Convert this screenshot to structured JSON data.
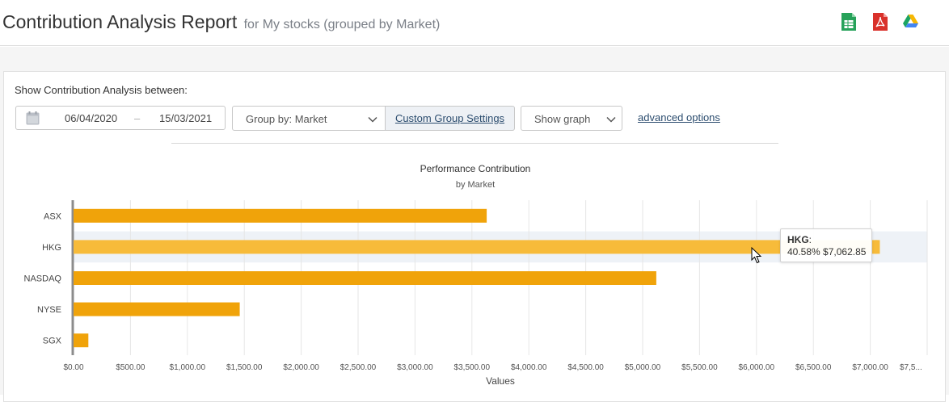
{
  "header": {
    "title": "Contribution Analysis Report",
    "subtitle": "for My stocks (grouped by Market)",
    "icons": [
      "spreadsheet-icon",
      "pdf-icon",
      "google-drive-icon"
    ]
  },
  "controls": {
    "show_label": "Show Contribution Analysis between:",
    "date_from": "06/04/2020",
    "date_dash": "–",
    "date_to": "15/03/2021",
    "group_by": "Group by: Market",
    "custom_group": "Custom Group Settings",
    "show_graph": "Show graph",
    "advanced": "advanced options"
  },
  "colors": {
    "bar": "#f0a30a",
    "bar_hover": "#f7bb3a",
    "row_highlight": "#eef2f7"
  },
  "tooltip": {
    "market": "HKG",
    "colon": ":",
    "text": "40.58% $7,062.85"
  },
  "chart_data": {
    "type": "bar",
    "orientation": "horizontal",
    "title": "Performance Contribution",
    "subtitle": "by Market",
    "xlabel": "Values",
    "categories": [
      "ASX",
      "HKG",
      "NASDAQ",
      "NYSE",
      "SGX"
    ],
    "values": [
      3630,
      7062.85,
      5120,
      1460,
      130
    ],
    "xlim": [
      0,
      7500
    ],
    "tick_labels": [
      "$0.00",
      "$500.00",
      "$1,000.00",
      "$1,500.00",
      "$2,000.00",
      "$2,500.00",
      "$3,000.00",
      "$3,500.00",
      "$4,000.00",
      "$4,500.00",
      "$5,000.00",
      "$5,500.00",
      "$6,000.00",
      "$6,500.00",
      "$7,000.00",
      "$7,5..."
    ],
    "highlighted": "HKG",
    "grid": true
  }
}
